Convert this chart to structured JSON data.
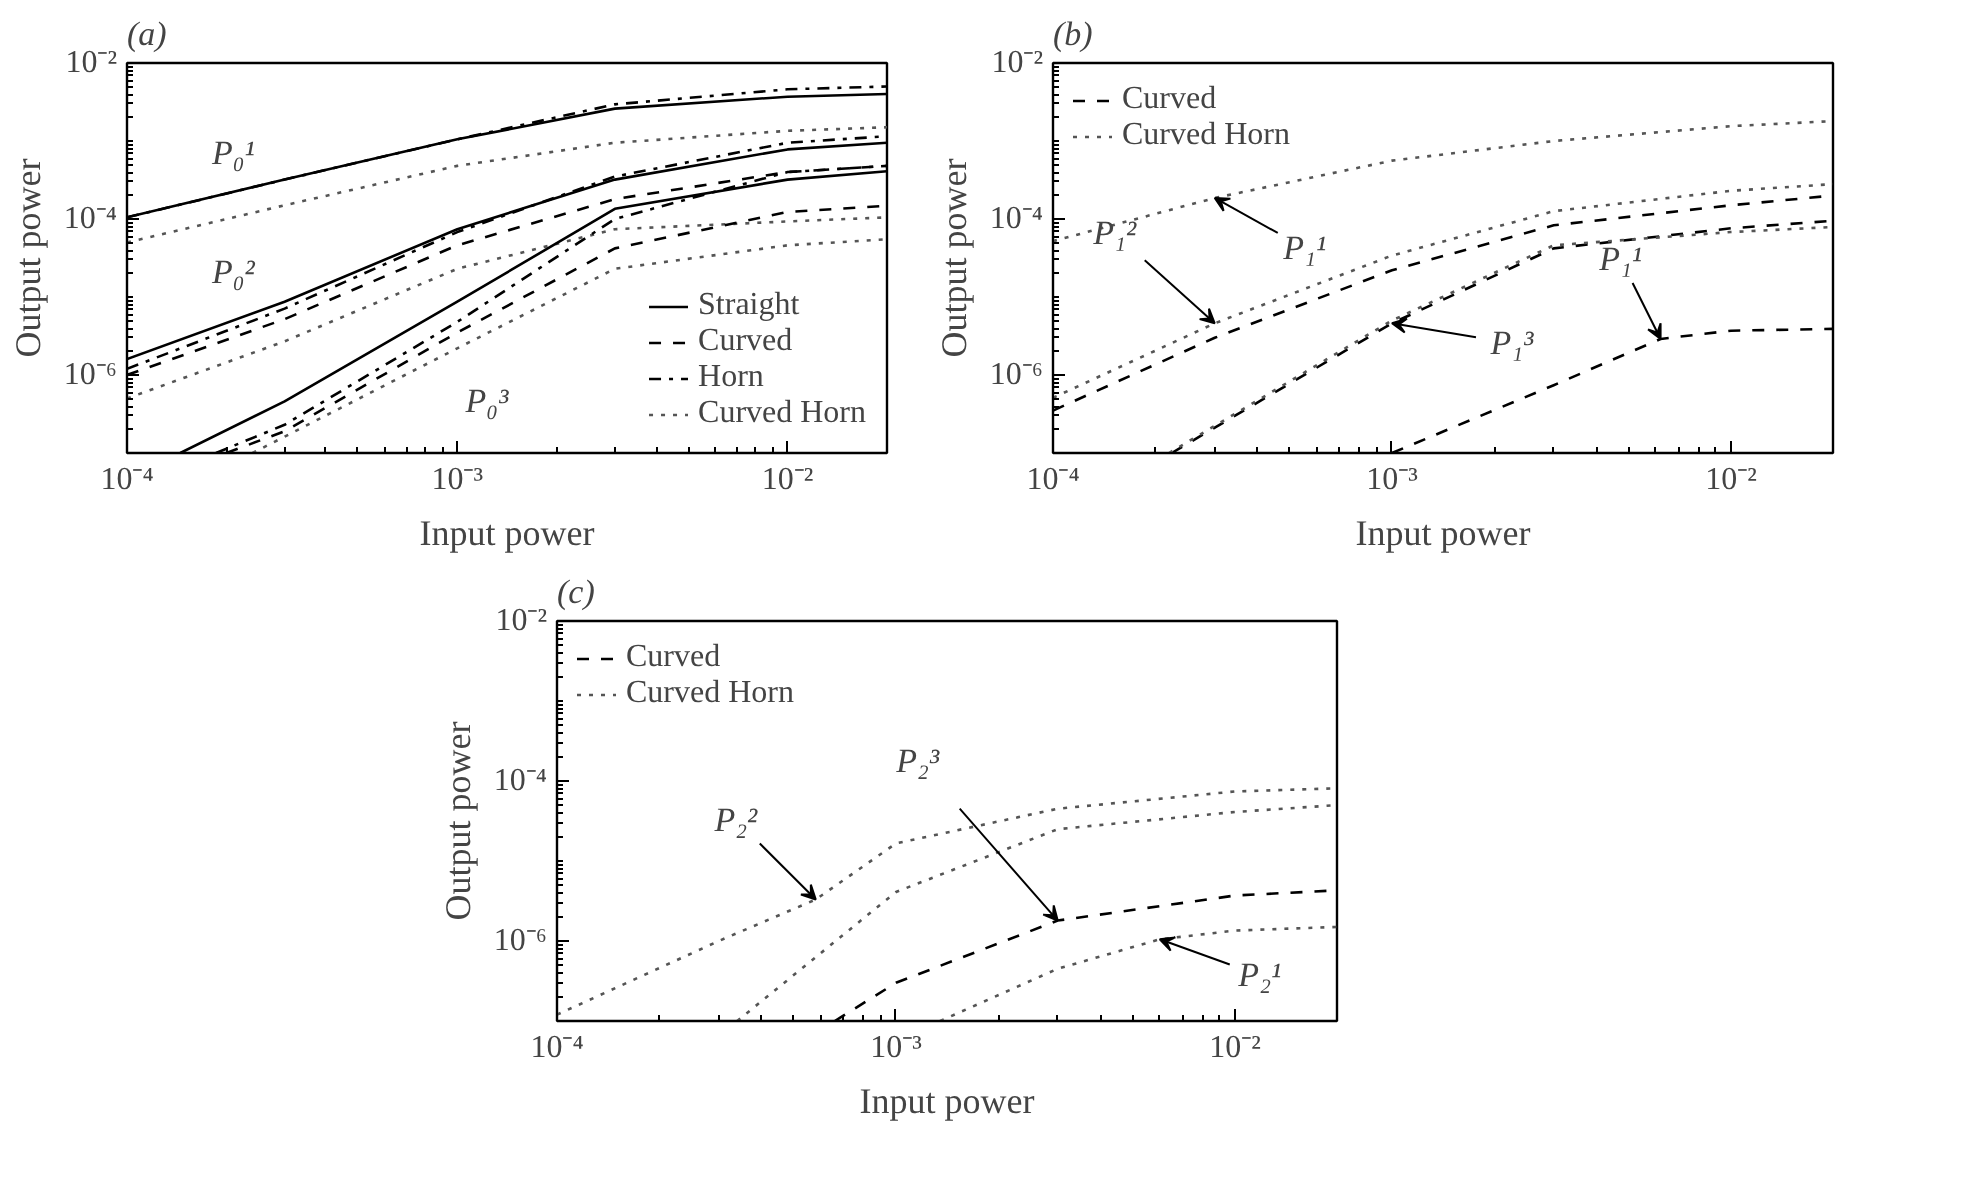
{
  "chart_data": [
    {
      "type": "line",
      "title": "(a)",
      "xlabel": "Input power",
      "ylabel": "Output power",
      "log": "xy",
      "legend": "bottom right",
      "xlim": [
        0.0001,
        0.02
      ],
      "ylim": [
        1e-07,
        0.01
      ],
      "xticks": [
        {
          "value": 0.0001,
          "label": "10⁻⁴"
        },
        {
          "value": 0.001,
          "label": "10⁻³"
        },
        {
          "value": 0.01,
          "label": "10⁻²"
        }
      ],
      "yticks": [
        {
          "value": 1e-06,
          "label": "10⁻⁶"
        },
        {
          "value": 0.0001,
          "label": "10⁻⁴"
        },
        {
          "value": 0.01,
          "label": "10⁻²"
        }
      ],
      "x": [
        0.0001,
        0.0003,
        0.001,
        0.003,
        0.01,
        0.02
      ],
      "series": [
        {
          "name": "Straight",
          "color": "#000000",
          "line_style": "solid",
          "values": [
            0.000105,
            0.00032,
            0.00105,
            0.0026,
            0.0037,
            0.004
          ]
        },
        {
          "name": "Curved",
          "color": "#000000",
          "line_style": "dashed",
          "values": [
            1e-06,
            5.2e-06,
            4.6e-05,
            0.00018,
            0.0004,
            0.00048
          ]
        },
        {
          "name": "Horn",
          "color": "#000000",
          "line_style": "dashdot",
          "values": [
            0.000105,
            0.00032,
            0.00105,
            0.00295,
            0.0046,
            0.005
          ]
        },
        {
          "name": "Curved Horn",
          "color": "#555555",
          "line_style": "dotted",
          "values": [
            5e-05,
            0.00015,
            0.00048,
            0.00095,
            0.00135,
            0.0015
          ]
        },
        {
          "color": "#000000",
          "line_style": "solid",
          "values": [
            1.6e-06,
            8.7e-06,
            7.4e-05,
            0.00032,
            0.00078,
            0.00095
          ]
        },
        {
          "color": "#000000",
          "line_style": "dashdot",
          "values": [
            1.2e-06,
            7.1e-06,
            6.8e-05,
            0.00035,
            0.00095,
            0.00115
          ]
        },
        {
          "color": "#555555",
          "line_style": "dotted",
          "values": [
            5e-07,
            2.7e-06,
            2.3e-05,
            7.4e-05,
            9.3e-05,
            0.000105
          ]
        },
        {
          "color": "#000000",
          "line_style": "solid",
          "x": [
            0.000145,
            0.0003,
            0.001,
            0.003,
            0.01,
            0.02
          ],
          "values": [
            1e-07,
            4.6e-07,
            8.7e-06,
            0.000135,
            0.00032,
            0.00041
          ]
        },
        {
          "color": "#000000",
          "line_style": "dashdot",
          "x": [
            0.000186,
            0.0003,
            0.001,
            0.003,
            0.01,
            0.02
          ],
          "values": [
            1e-07,
            2.3e-07,
            4.8e-06,
            0.0001,
            0.0004,
            0.00048
          ]
        },
        {
          "color": "#000000",
          "line_style": "dashed",
          "x": [
            0.0002,
            0.0003,
            0.001,
            0.003,
            0.01,
            0.02
          ],
          "values": [
            1e-07,
            1.9e-07,
            3.5e-06,
            4.2e-05,
            0.000123,
            0.000148
          ]
        },
        {
          "color": "#555555",
          "line_style": "dotted",
          "x": [
            0.00024,
            0.001,
            0.003,
            0.01,
            0.02
          ],
          "values": [
            1e-07,
            2.2e-06,
            2.3e-05,
            4.6e-05,
            5.5e-05
          ]
        }
      ],
      "annotations": [
        "P₀¹",
        "P₀²",
        "P₀³"
      ]
    },
    {
      "type": "line",
      "title": "(b)",
      "xlabel": "Input power",
      "ylabel": "Output power",
      "log": "xy",
      "legend": "top left",
      "xlim": [
        0.0001,
        0.02
      ],
      "ylim": [
        1e-07,
        0.01
      ],
      "xticks": [
        {
          "value": 0.0001,
          "label": "10⁻⁴"
        },
        {
          "value": 0.001,
          "label": "10⁻³"
        },
        {
          "value": 0.01,
          "label": "10⁻²"
        }
      ],
      "yticks": [
        {
          "value": 1e-06,
          "label": "10⁻⁶"
        },
        {
          "value": 0.0001,
          "label": "10⁻⁴"
        },
        {
          "value": 0.01,
          "label": "10⁻²"
        }
      ],
      "x": [
        0.0001,
        0.0003,
        0.001,
        0.003,
        0.01,
        0.02
      ],
      "series": [
        {
          "name": "Curved",
          "color": "#000000",
          "line_style": "dashed",
          "values": [
            3.5e-07,
            3e-06,
            2.2e-05,
            8.3e-05,
            0.00015,
            0.0002
          ]
        },
        {
          "name": "Curved Horn",
          "color": "#555555",
          "line_style": "dotted",
          "values": [
            5.2e-05,
            0.000186,
            0.00056,
            0.001,
            0.00155,
            0.0018
          ]
        },
        {
          "color": "#555555",
          "line_style": "dotted",
          "values": [
            5.1e-07,
            4.6e-06,
            3.4e-05,
            0.000126,
            0.00023,
            0.00028
          ]
        },
        {
          "color": "#000000",
          "line_style": "dashed",
          "x": [
            0.000224,
            0.001,
            0.003,
            0.01,
            0.02
          ],
          "values": [
            1e-07,
            4.6e-06,
            4.2e-05,
            7.6e-05,
            9.5e-05
          ]
        },
        {
          "color": "#555555",
          "line_style": "dotted",
          "x": [
            0.00022,
            0.001,
            0.003,
            0.01,
            0.02
          ],
          "values": [
            1e-07,
            5e-06,
            4.6e-05,
            6.8e-05,
            7.9e-05
          ]
        },
        {
          "color": "#000000",
          "line_style": "dashed",
          "x": [
            0.001,
            0.003,
            0.0062,
            0.01,
            0.02
          ],
          "values": [
            1e-07,
            7.4e-07,
            2.9e-06,
            3.7e-06,
            3.9e-06
          ]
        }
      ],
      "annotations": [
        {
          "text": "P₁¹",
          "x": 0.0003,
          "y": 0.000186
        },
        {
          "text": "P₁²",
          "x": 0.0003,
          "y": 4.6e-06
        },
        {
          "text": "P₁³",
          "x": 0.001,
          "y": 4.6e-06
        },
        {
          "text": "P₁¹",
          "x": 0.0062,
          "y": 2.9e-06
        }
      ]
    },
    {
      "type": "line",
      "title": "(c)",
      "xlabel": "Input power",
      "ylabel": "Output power",
      "log": "xy",
      "legend": "top left",
      "xlim": [
        0.0001,
        0.02
      ],
      "ylim": [
        1e-07,
        0.01
      ],
      "xticks": [
        {
          "value": 0.0001,
          "label": "10⁻⁴"
        },
        {
          "value": 0.001,
          "label": "10⁻³"
        },
        {
          "value": 0.01,
          "label": "10⁻²"
        }
      ],
      "yticks": [
        {
          "value": 1e-06,
          "label": "10⁻⁶"
        },
        {
          "value": 0.0001,
          "label": "10⁻⁴"
        },
        {
          "value": 0.01,
          "label": "10⁻²"
        }
      ],
      "series": [
        {
          "name": "Curved",
          "color": "#000000",
          "line_style": "dashed",
          "x": [
            0.00066,
            0.001,
            0.003,
            0.01,
            0.02
          ],
          "values": [
            1e-07,
            3e-07,
            1.8e-06,
            3.7e-06,
            4.3e-06
          ]
        },
        {
          "name": "Curved Horn",
          "color": "#555555",
          "line_style": "dotted",
          "x": [
            0.0001,
            0.0003,
            0.00058,
            0.001,
            0.003,
            0.01,
            0.02
          ],
          "values": [
            1.2e-07,
            1e-06,
            3.3e-06,
            1.66e-05,
            4.5e-05,
            7.4e-05,
            8.1e-05
          ]
        },
        {
          "color": "#555555",
          "line_style": "dotted",
          "x": [
            0.00034,
            0.001,
            0.003,
            0.01,
            0.02
          ],
          "values": [
            1e-07,
            4.1e-06,
            2.5e-05,
            4.1e-05,
            5e-05
          ]
        },
        {
          "color": "#555555",
          "line_style": "dotted",
          "x": [
            0.00135,
            0.003,
            0.006,
            0.01,
            0.02
          ],
          "values": [
            1e-07,
            4.5e-07,
            1.05e-06,
            1.35e-06,
            1.5e-06
          ]
        }
      ],
      "annotations": [
        {
          "text": "P₂²",
          "x": 0.00058,
          "y": 3.3e-06
        },
        {
          "text": "P₂³",
          "x": 0.003,
          "y": 1.8e-06
        },
        {
          "text": "P₂¹",
          "x": 0.006,
          "y": 1.05e-06
        }
      ]
    }
  ]
}
